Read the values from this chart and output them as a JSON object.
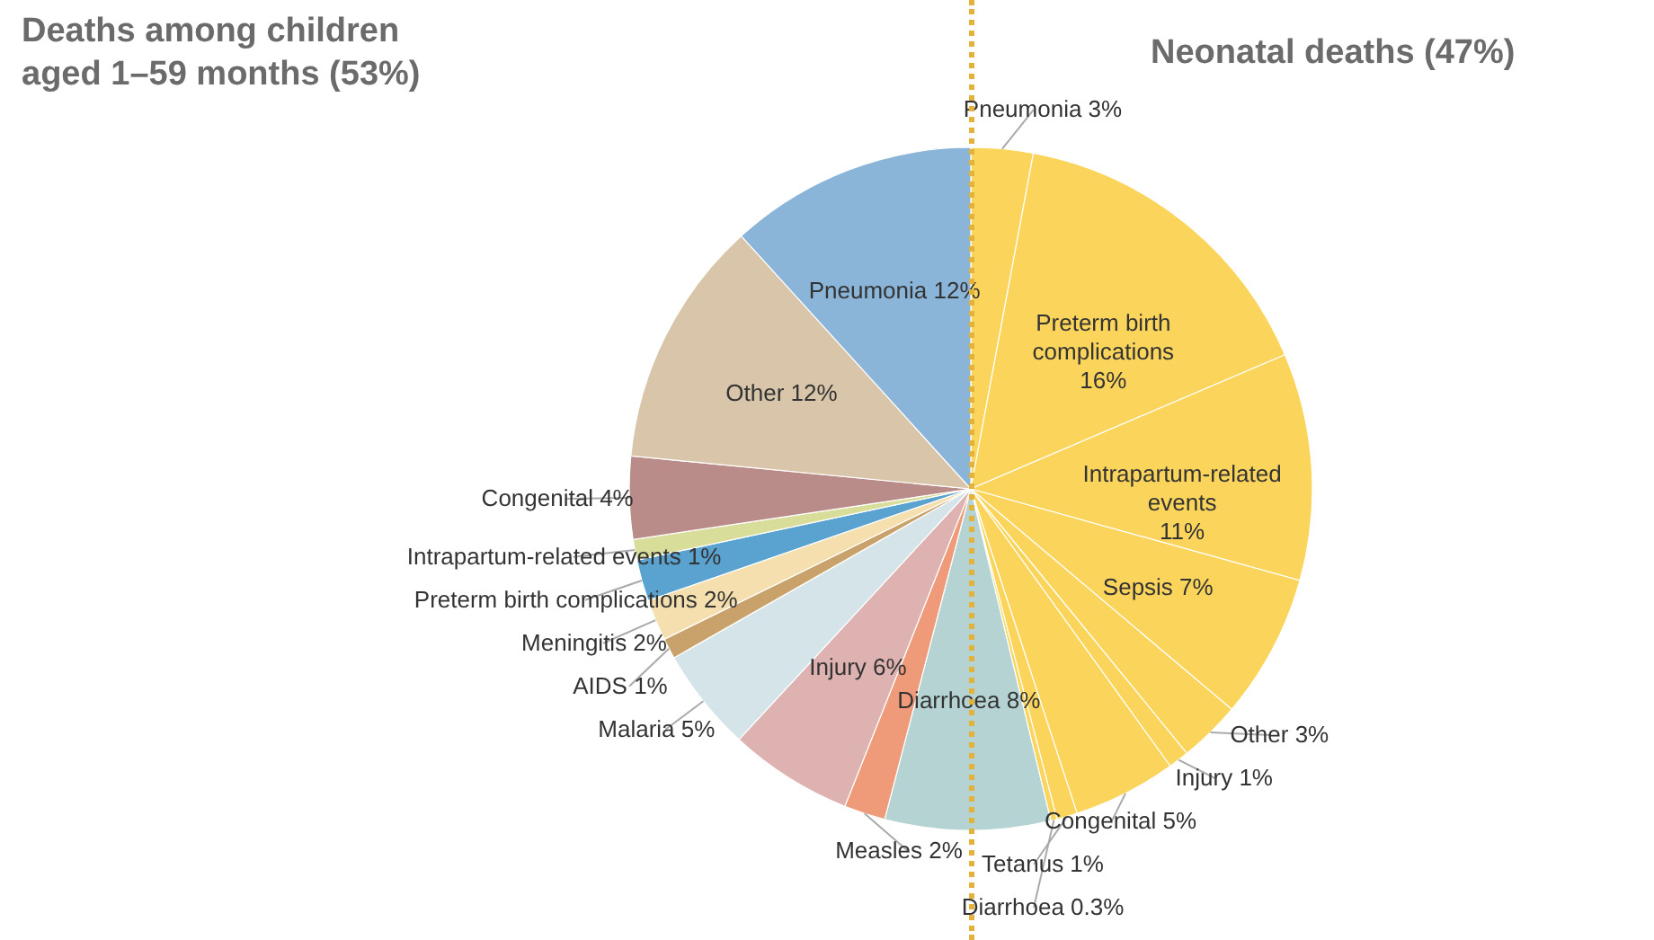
{
  "chart_data": {
    "type": "pie",
    "categories": [
      "Pneumonia",
      "Preterm birth complications",
      "Intrapartum-related events",
      "Sepsis",
      "Other",
      "Injury",
      "Congenital",
      "Tetanus",
      "Diarrhoea",
      "Diarrhoea",
      "Measles",
      "Injury",
      "Malaria",
      "AIDS",
      "Meningitis",
      "Preterm birth complications",
      "Intrapartum-related events",
      "Congenital",
      "Other",
      "Pneumonia"
    ],
    "values": [
      3,
      16,
      11,
      7,
      3,
      1,
      5,
      1,
      0.3,
      8,
      2,
      6,
      5,
      1,
      2,
      2,
      1,
      4,
      12,
      12
    ],
    "value_labels": [
      "3%",
      "16%",
      "11%",
      "7%",
      "3%",
      "1%",
      "5%",
      "1%",
      "0.3%",
      "8%",
      "2%",
      "6%",
      "5%",
      "1%",
      "2%",
      "2%",
      "1%",
      "4%",
      "12%",
      "12%"
    ],
    "colors": [
      "#fbd55b",
      "#fbd55b",
      "#fbd55b",
      "#fbd55b",
      "#fbd55b",
      "#fbd55b",
      "#fbd55b",
      "#fbd55b",
      "#fbd55b",
      "#b5d3d3",
      "#ef9a78",
      "#ddb2b0",
      "#d5e4e8",
      "#c9a26b",
      "#f6dfae",
      "#5aa2cf",
      "#d9dd9a",
      "#b98b89",
      "#d9c6aa",
      "#8ab4d8"
    ],
    "annotations": [
      "Deaths among children aged 1–59 months (53%)",
      "Neonatal deaths (47%)"
    ]
  }
}
